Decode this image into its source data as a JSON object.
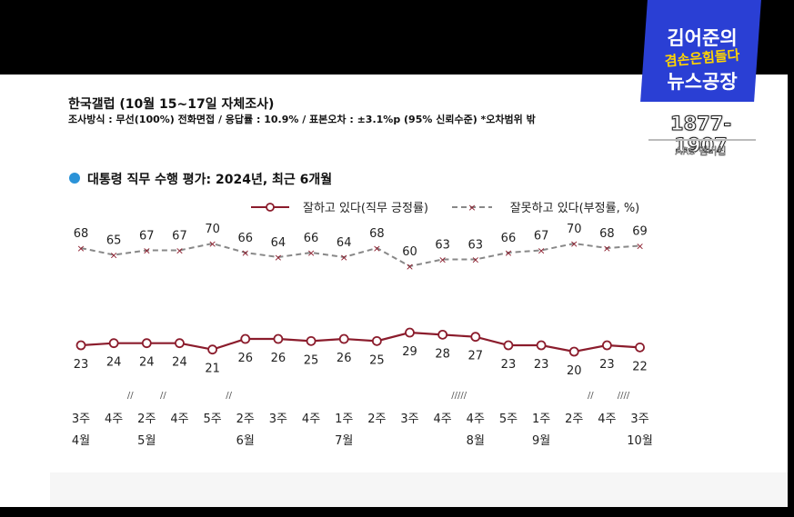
{
  "header": {
    "title": "한국갤럽 (10월 15~17일 자체조사)",
    "method": "조사방식 : 무선(100%) 전화면접 / 응답률 : 10.9% / 표본오차 : ±3.1%p (95% 신뢰수준)  *오차범위 밖"
  },
  "brand": {
    "name_line1": "김어준의",
    "name_line2": "겸손은힘들다",
    "name_line3": "뉴스공장",
    "phone": "1877-1907",
    "ars": "ARS 멤버십"
  },
  "chart_title": "대통령 직무 수행 평가: 2024년, 최근 6개월",
  "colors": {
    "approve": "#8b1c2c",
    "disapprove": "#888888",
    "bullet": "#2b93d8"
  },
  "chart_data": {
    "type": "line",
    "title": "대통령 직무 수행 평가: 2024년, 최근 6개월",
    "categories": [
      "3주",
      "4주",
      "2주",
      "4주",
      "5주",
      "2주",
      "3주",
      "4주",
      "1주",
      "2주",
      "3주",
      "4주",
      "4주",
      "5주",
      "1주",
      "2주",
      "4주",
      "3주"
    ],
    "months": [
      {
        "label": "4월",
        "index": 0
      },
      {
        "label": "5월",
        "index": 2
      },
      {
        "label": "6월",
        "index": 5
      },
      {
        "label": "7월",
        "index": 8
      },
      {
        "label": "8월",
        "index": 12
      },
      {
        "label": "9월",
        "index": 14
      },
      {
        "label": "10월",
        "index": 17
      }
    ],
    "breaks": [
      {
        "label": "//",
        "after_index": 1
      },
      {
        "label": "//",
        "after_index": 2
      },
      {
        "label": "//",
        "after_index": 4
      },
      {
        "label": "/////",
        "after_index": 11
      },
      {
        "label": "//",
        "after_index": 15
      },
      {
        "label": "////",
        "after_index": 16
      }
    ],
    "series": [
      {
        "name": "잘못하고 있다(부정률, %)",
        "style": "dashed",
        "marker": "x",
        "values": [
          68,
          65,
          67,
          67,
          70,
          66,
          64,
          66,
          64,
          68,
          60,
          63,
          63,
          66,
          67,
          70,
          68,
          69
        ]
      },
      {
        "name": "잘하고 있다(직무 긍정률)",
        "style": "solid",
        "marker": "circle",
        "values": [
          23,
          24,
          24,
          24,
          21,
          26,
          26,
          25,
          26,
          25,
          29,
          28,
          27,
          23,
          23,
          20,
          23,
          22
        ]
      }
    ]
  }
}
